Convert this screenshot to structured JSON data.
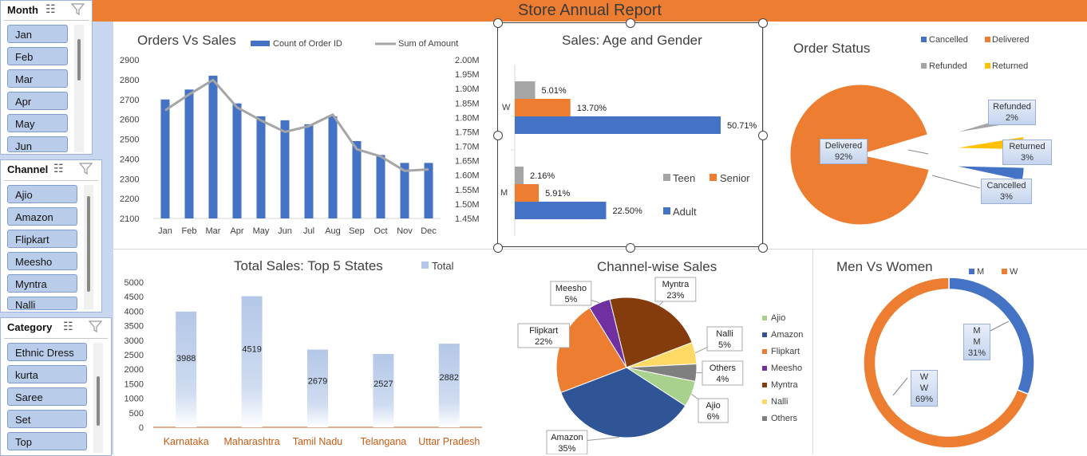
{
  "report": {
    "title": "Store Annual Report"
  },
  "slicers": {
    "month": {
      "title": "Month",
      "items": [
        "Jan",
        "Feb",
        "Mar",
        "Apr",
        "May",
        "Jun"
      ]
    },
    "channel": {
      "title": "Channel",
      "items": [
        "Ajio",
        "Amazon",
        "Flipkart",
        "Meesho",
        "Myntra",
        "Nalli"
      ]
    },
    "category": {
      "title": "Category",
      "items": [
        "Ethnic Dress",
        "kurta",
        "Saree",
        "Set",
        "Top"
      ]
    }
  },
  "colors": {
    "blue": "#4472C4",
    "orange": "#ED7D31",
    "gray": "#A5A5A5",
    "gold": "#FFC000",
    "darkblue": "#2F5597",
    "purple": "#7030A0",
    "brown": "#843C0C",
    "yellow": "#FFD966",
    "green": "#A9D18E",
    "lightblue": "#B4C7E7"
  },
  "chart_data": [
    {
      "type": "bar+line",
      "title": "Orders Vs Sales",
      "categories": [
        "Jan",
        "Feb",
        "Mar",
        "Apr",
        "May",
        "Jun",
        "Jul",
        "Aug",
        "Sep",
        "Oct",
        "Nov",
        "Dec"
      ],
      "series": [
        {
          "name": "Count of Order ID",
          "axis": "left",
          "values": [
            2700,
            2750,
            2820,
            2680,
            2615,
            2595,
            2575,
            2615,
            2490,
            2420,
            2380,
            2380
          ]
        },
        {
          "name": "Sum of Amount",
          "axis": "right",
          "values": [
            1.825,
            1.88,
            1.93,
            1.835,
            1.79,
            1.75,
            1.77,
            1.81,
            1.69,
            1.665,
            1.615,
            1.62
          ]
        }
      ],
      "ylim_left": [
        2100,
        2900
      ],
      "yticks_left": [
        "2900",
        "2800",
        "2700",
        "2600",
        "2500",
        "2400",
        "2300",
        "2200",
        "2100"
      ],
      "ylim_right": [
        1.45,
        2.0
      ],
      "yticks_right": [
        "2.00M",
        "1.95M",
        "1.90M",
        "1.85M",
        "1.80M",
        "1.75M",
        "1.70M",
        "1.65M",
        "1.60M",
        "1.55M",
        "1.50M",
        "1.45M"
      ]
    },
    {
      "type": "bar",
      "orientation": "horizontal",
      "title": "Sales: Age and Gender",
      "categories": [
        "W",
        "M"
      ],
      "series": [
        {
          "name": "Teen",
          "values": [
            5.01,
            2.16
          ],
          "labels": [
            "5.01%",
            "2.16%"
          ]
        },
        {
          "name": "Senior",
          "values": [
            13.7,
            5.91
          ],
          "labels": [
            "13.70%",
            "5.91%"
          ]
        },
        {
          "name": "Adult",
          "values": [
            50.71,
            22.5
          ],
          "labels": [
            "50.71%",
            "22.50%"
          ]
        }
      ]
    },
    {
      "type": "pie",
      "title": "Order Status",
      "slices": [
        {
          "name": "Cancelled",
          "value": 3,
          "label": "3%"
        },
        {
          "name": "Delivered",
          "value": 92,
          "label": "92%"
        },
        {
          "name": "Refunded",
          "value": 2,
          "label": "2%"
        },
        {
          "name": "Returned",
          "value": 3,
          "label": "3%"
        }
      ]
    },
    {
      "type": "bar",
      "title": "Total Sales: Top 5 States",
      "legend": "Total",
      "categories": [
        "Karnataka",
        "Maharashtra",
        "Tamil Nadu",
        "Telangana",
        "Uttar Pradesh"
      ],
      "values": [
        3988,
        4519,
        2679,
        2527,
        2882
      ],
      "ylim": [
        0,
        5000
      ],
      "yticks": [
        "5000",
        "4500",
        "4000",
        "3500",
        "3000",
        "2500",
        "2000",
        "1500",
        "1000",
        "500",
        "0"
      ]
    },
    {
      "type": "pie",
      "title": "Channel-wise Sales",
      "slices": [
        {
          "name": "Ajio",
          "value": 6,
          "label": "Ajio\n6%"
        },
        {
          "name": "Amazon",
          "value": 35,
          "label": "Amazon\n35%"
        },
        {
          "name": "Flipkart",
          "value": 22,
          "label": "Flipkart\n22%"
        },
        {
          "name": "Meesho",
          "value": 5,
          "label": "Meesho\n5%"
        },
        {
          "name": "Myntra",
          "value": 23,
          "label": "Myntra\n23%"
        },
        {
          "name": "Nalli",
          "value": 5,
          "label": "Nalli\n5%"
        },
        {
          "name": "Others",
          "value": 4,
          "label": "Others\n4%"
        }
      ]
    },
    {
      "type": "doughnut",
      "title": "Men Vs Women",
      "slices": [
        {
          "name": "M",
          "value": 31,
          "label": "M\n31%"
        },
        {
          "name": "W",
          "value": 69,
          "label": "W\n69%"
        }
      ]
    }
  ]
}
